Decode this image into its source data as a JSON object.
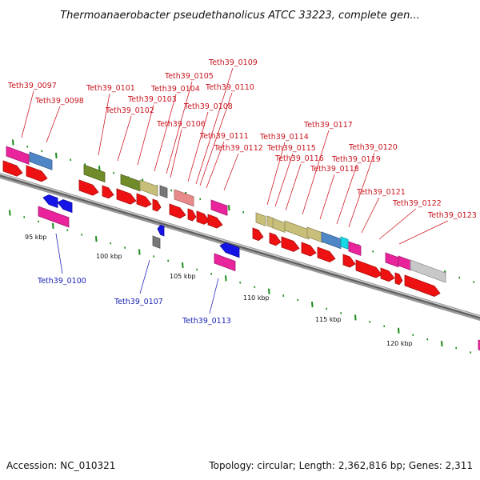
{
  "title": "Thermoanaerobacter pseudethanolicus ATCC 33223, complete gen...",
  "footer": {
    "accession": "Accession: NC_010321",
    "topology": "Topology: circular; Length: 2,362,816 bp; Genes: 2,311"
  },
  "scale_labels": [
    "95 kbp",
    "100 kbp",
    "105 kbp",
    "110 kbp",
    "115 kbp",
    "120 kbp"
  ],
  "gene_labels_forward": [
    "Teth39_0097",
    "Teth39_0098",
    "Teth39_0101",
    "Teth39_0102",
    "Teth39_0103",
    "Teth39_0104",
    "Teth39_0105",
    "Teth39_0106",
    "Teth39_0108",
    "Teth39_0109",
    "Teth39_0110",
    "Teth39_0111",
    "Teth39_0112",
    "Teth39_0114",
    "Teth39_0115",
    "Teth39_0116",
    "Teth39_0117",
    "Teth39_0118",
    "Teth39_0119",
    "Teth39_0120",
    "Teth39_0121",
    "Teth39_0122",
    "Teth39_0123"
  ],
  "gene_labels_reverse": [
    "Teth39_0100",
    "Teth39_0107",
    "Teth39_0113"
  ],
  "colors": {
    "forward_cds": "#ee1111",
    "reverse_cds": "#1414e6",
    "pink": "#e8239c",
    "steel_blue": "#4f86c6",
    "olive": "#6f8b2a",
    "khaki": "#c8bf7a",
    "gray": "#777777",
    "light_gray": "#c8c8c8",
    "salmon": "#e88a8a",
    "cyan": "#16d8e6",
    "tick_green": "#1a8c1a",
    "backbone": "#8a8a8a"
  }
}
